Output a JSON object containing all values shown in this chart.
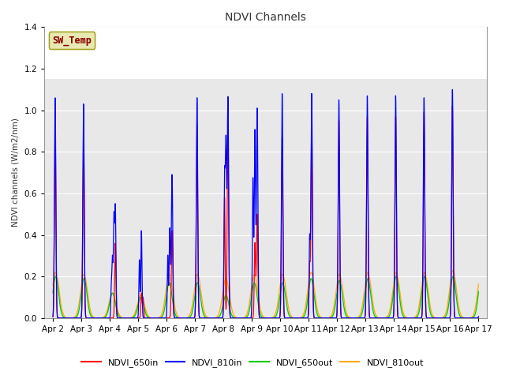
{
  "title": "NDVI Channels",
  "ylabel": "NDVI channels (W/m2/nm)",
  "fig_facecolor": "#ffffff",
  "plot_bg_color": "#e8e8e8",
  "legend_label": "SW_Temp",
  "legend_text_color": "#8b0000",
  "legend_box_facecolor": "#e8e8b0",
  "legend_box_edgecolor": "#999900",
  "series_colors": {
    "NDVI_650in": "#ff0000",
    "NDVI_810in": "#0000ff",
    "NDVI_650out": "#00cc00",
    "NDVI_810out": "#ffaa00"
  },
  "ylim": [
    0,
    1.4
  ],
  "xlim": [
    1.7,
    17.3
  ],
  "tick_labels": [
    "Apr 2",
    "Apr 3",
    "Apr 4",
    "Apr 5",
    "Apr 6",
    "Apr 7",
    "Apr 8",
    "Apr 9",
    "Apr 10",
    "Apr 11",
    "Apr 12",
    "Apr 13",
    "Apr 14",
    "Apr 15",
    "Apr 16",
    "Apr 17"
  ],
  "tick_positions": [
    2,
    3,
    4,
    5,
    6,
    7,
    8,
    9,
    10,
    11,
    12,
    13,
    14,
    15,
    16,
    17
  ],
  "white_bg_threshold": 1.15
}
